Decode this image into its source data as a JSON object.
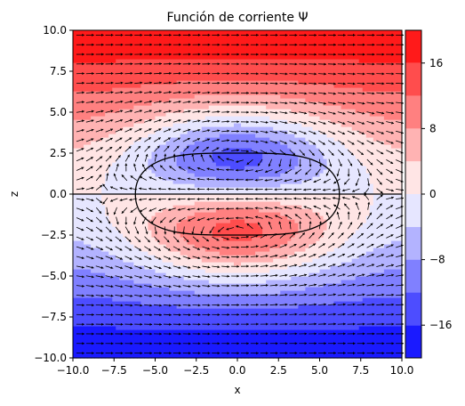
{
  "chart_data": {
    "type": "contour",
    "title": "Función de corriente Ψ",
    "xlabel": "x",
    "ylabel": "z",
    "xlim": [
      -10,
      10
    ],
    "ylim": [
      -10,
      10
    ],
    "x_ticks": [
      "−10.0",
      "−7.5",
      "−5.0",
      "−2.5",
      "0.0",
      "2.5",
      "5.0",
      "7.5",
      "10.0"
    ],
    "y_ticks": [
      "−10.0",
      "−7.5",
      "−5.0",
      "−2.5",
      "0.0",
      "2.5",
      "5.0",
      "7.5",
      "10.0"
    ],
    "colorbar": {
      "range": [
        -20,
        20
      ],
      "levels": [
        -20,
        -16,
        -12,
        -8,
        -4,
        0,
        4,
        8,
        12,
        16,
        20
      ],
      "tick_values": [
        16,
        8,
        0,
        -8,
        -16
      ],
      "tick_labels": [
        "16",
        "8",
        "0",
        "−8",
        "−16"
      ],
      "colormap": "bwr"
    },
    "streamlines": {
      "vortex_half_width": 6.2,
      "vortex_half_height": 2.5,
      "separatrix_color": "#000000"
    }
  }
}
